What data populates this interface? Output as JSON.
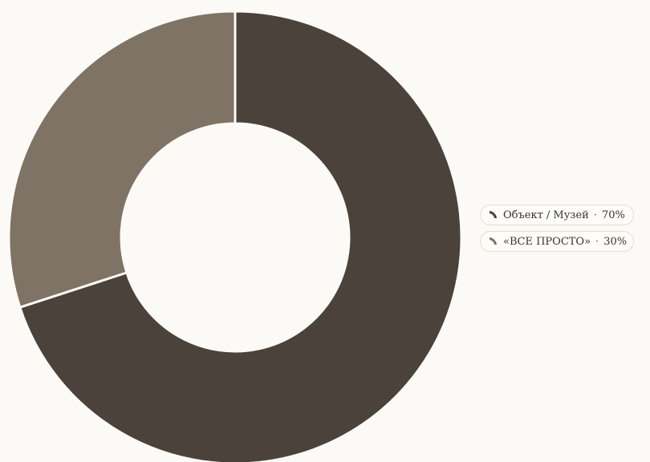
{
  "chart_data": {
    "type": "pie",
    "subtype": "donut",
    "title": "",
    "legend_position": "right",
    "slices": [
      {
        "label": "Объект / Музей",
        "value": 70,
        "value_label": "70%",
        "color": "#4a423b"
      },
      {
        "label": "«ВСЕ ПРОСТО»",
        "value": 30,
        "value_label": "30%",
        "color": "#7e7365"
      }
    ]
  },
  "legend": {
    "separator": "·"
  },
  "colors": {
    "background": "#fcfaf6",
    "slice_gap": "#fcfaf6"
  }
}
